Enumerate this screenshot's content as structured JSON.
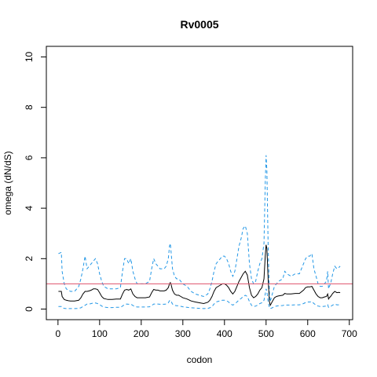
{
  "chart_data": {
    "type": "line",
    "title": "Rv0005",
    "xlabel": "codon",
    "ylabel": "omega (dN/dS)",
    "xlim": [
      -28,
      708
    ],
    "ylim": [
      -0.42,
      10.42
    ],
    "xticks": [
      0,
      100,
      200,
      300,
      400,
      500,
      600,
      700
    ],
    "yticks": [
      0,
      2,
      4,
      6,
      8,
      10
    ],
    "reference_line": {
      "y": 1,
      "color": "#DF536B"
    },
    "series": [
      {
        "role": "upper",
        "color": "#2297E6",
        "dash": "dashed",
        "x": [
          1,
          8,
          10,
          15,
          20,
          25,
          30,
          40,
          50,
          55,
          60,
          65,
          70,
          75,
          80,
          85,
          90,
          95,
          100,
          105,
          110,
          115,
          120,
          130,
          140,
          150,
          155,
          160,
          165,
          170,
          175,
          180,
          185,
          190,
          195,
          200,
          210,
          220,
          225,
          230,
          235,
          240,
          245,
          250,
          255,
          260,
          265,
          268,
          270,
          272,
          275,
          280,
          285,
          290,
          295,
          300,
          310,
          320,
          330,
          340,
          350,
          360,
          365,
          370,
          375,
          380,
          390,
          395,
          400,
          405,
          410,
          415,
          420,
          425,
          430,
          435,
          440,
          445,
          450,
          455,
          460,
          465,
          470,
          475,
          480,
          485,
          490,
          495,
          498,
          500,
          502,
          505,
          508,
          510,
          515,
          520,
          525,
          530,
          540,
          545,
          550,
          560,
          570,
          580,
          590,
          595,
          600,
          605,
          610,
          615,
          620,
          625,
          630,
          635,
          640,
          645,
          648,
          650,
          652,
          655,
          660,
          665,
          670,
          675,
          678
        ],
        "y": [
          2.2,
          2.25,
          1.5,
          1.0,
          0.8,
          0.75,
          0.7,
          0.7,
          0.9,
          1.2,
          1.6,
          2.1,
          1.6,
          1.7,
          1.8,
          1.9,
          2.0,
          1.8,
          1.4,
          1.1,
          0.9,
          0.85,
          0.8,
          0.8,
          0.8,
          0.85,
          1.5,
          2.0,
          2.0,
          1.8,
          2.0,
          1.5,
          1.2,
          1.0,
          1.0,
          1.0,
          1.0,
          1.1,
          1.6,
          2.0,
          1.8,
          1.7,
          1.6,
          1.6,
          1.6,
          1.7,
          2.0,
          2.5,
          2.6,
          2.2,
          1.6,
          1.3,
          1.2,
          1.2,
          1.1,
          1.0,
          0.9,
          0.7,
          0.6,
          0.55,
          0.5,
          0.6,
          0.8,
          1.1,
          1.5,
          1.8,
          2.0,
          2.1,
          2.1,
          2.0,
          1.8,
          1.5,
          1.3,
          1.5,
          2.0,
          2.5,
          2.8,
          3.2,
          3.3,
          3.0,
          1.8,
          1.2,
          1.0,
          1.1,
          1.5,
          1.8,
          2.0,
          2.6,
          5.0,
          6.1,
          5.5,
          2.5,
          0.6,
          0.3,
          0.6,
          0.9,
          1.0,
          1.1,
          1.2,
          1.5,
          1.4,
          1.3,
          1.4,
          1.4,
          1.8,
          2.0,
          2.1,
          2.1,
          2.2,
          1.6,
          1.3,
          1.0,
          0.9,
          0.9,
          1.0,
          1.1,
          1.5,
          0.8,
          0.9,
          1.0,
          1.4,
          1.7,
          1.6,
          1.65,
          1.7
        ]
      },
      {
        "role": "mean",
        "color": "#000000",
        "dash": "solid",
        "x": [
          1,
          8,
          10,
          15,
          20,
          25,
          30,
          40,
          50,
          55,
          60,
          65,
          70,
          75,
          80,
          85,
          90,
          95,
          100,
          105,
          110,
          115,
          120,
          130,
          140,
          150,
          155,
          160,
          165,
          170,
          175,
          180,
          185,
          190,
          195,
          200,
          210,
          220,
          225,
          230,
          235,
          240,
          245,
          250,
          255,
          260,
          265,
          268,
          270,
          272,
          275,
          280,
          285,
          290,
          295,
          300,
          310,
          320,
          330,
          340,
          350,
          360,
          365,
          370,
          375,
          380,
          390,
          395,
          400,
          405,
          410,
          415,
          420,
          425,
          430,
          435,
          440,
          445,
          450,
          455,
          460,
          465,
          470,
          475,
          480,
          485,
          490,
          495,
          498,
          500,
          502,
          505,
          508,
          510,
          515,
          520,
          525,
          530,
          540,
          545,
          550,
          560,
          570,
          580,
          590,
          595,
          600,
          605,
          610,
          615,
          620,
          625,
          630,
          635,
          640,
          645,
          648,
          650,
          652,
          655,
          660,
          665,
          670,
          675,
          678
        ],
        "y": [
          0.7,
          0.7,
          0.5,
          0.38,
          0.35,
          0.33,
          0.32,
          0.32,
          0.35,
          0.45,
          0.6,
          0.7,
          0.7,
          0.72,
          0.75,
          0.8,
          0.8,
          0.78,
          0.65,
          0.5,
          0.42,
          0.4,
          0.38,
          0.38,
          0.4,
          0.4,
          0.6,
          0.75,
          0.78,
          0.75,
          0.8,
          0.6,
          0.5,
          0.45,
          0.45,
          0.45,
          0.45,
          0.48,
          0.65,
          0.78,
          0.75,
          0.75,
          0.72,
          0.72,
          0.72,
          0.75,
          0.85,
          1.0,
          1.05,
          0.95,
          0.75,
          0.6,
          0.55,
          0.55,
          0.5,
          0.45,
          0.4,
          0.32,
          0.28,
          0.25,
          0.22,
          0.27,
          0.35,
          0.5,
          0.7,
          0.85,
          0.95,
          1.0,
          1.0,
          0.95,
          0.85,
          0.7,
          0.6,
          0.7,
          0.9,
          1.1,
          1.25,
          1.4,
          1.5,
          1.35,
          0.85,
          0.55,
          0.45,
          0.5,
          0.6,
          0.75,
          0.85,
          1.2,
          2.1,
          2.55,
          2.4,
          1.2,
          0.3,
          0.15,
          0.3,
          0.45,
          0.5,
          0.52,
          0.55,
          0.62,
          0.6,
          0.6,
          0.62,
          0.62,
          0.75,
          0.85,
          0.88,
          0.88,
          0.9,
          0.75,
          0.6,
          0.5,
          0.45,
          0.45,
          0.48,
          0.5,
          0.6,
          0.4,
          0.45,
          0.5,
          0.62,
          0.7,
          0.65,
          0.66,
          0.65
        ]
      },
      {
        "role": "lower",
        "color": "#2297E6",
        "dash": "dashed",
        "x": [
          1,
          8,
          10,
          15,
          20,
          25,
          30,
          40,
          50,
          55,
          60,
          65,
          70,
          75,
          80,
          85,
          90,
          95,
          100,
          105,
          110,
          115,
          120,
          130,
          140,
          150,
          155,
          160,
          165,
          170,
          175,
          180,
          185,
          190,
          195,
          200,
          210,
          220,
          225,
          230,
          235,
          240,
          245,
          250,
          255,
          260,
          265,
          268,
          270,
          272,
          275,
          280,
          285,
          290,
          295,
          300,
          310,
          320,
          330,
          340,
          350,
          360,
          365,
          370,
          375,
          380,
          390,
          395,
          400,
          405,
          410,
          415,
          420,
          425,
          430,
          435,
          440,
          445,
          450,
          455,
          460,
          465,
          470,
          475,
          480,
          485,
          490,
          495,
          498,
          500,
          502,
          505,
          508,
          510,
          515,
          520,
          525,
          530,
          540,
          545,
          550,
          560,
          570,
          580,
          590,
          595,
          600,
          605,
          610,
          615,
          620,
          625,
          630,
          635,
          640,
          645,
          648,
          650,
          652,
          655,
          660,
          665,
          670,
          675,
          678
        ],
        "y": [
          0.1,
          0.1,
          0.06,
          0.03,
          0.02,
          0.02,
          0.02,
          0.02,
          0.03,
          0.05,
          0.1,
          0.15,
          0.2,
          0.2,
          0.22,
          0.24,
          0.24,
          0.22,
          0.18,
          0.12,
          0.08,
          0.07,
          0.06,
          0.06,
          0.07,
          0.07,
          0.12,
          0.18,
          0.2,
          0.19,
          0.2,
          0.14,
          0.1,
          0.08,
          0.08,
          0.08,
          0.08,
          0.09,
          0.14,
          0.2,
          0.2,
          0.2,
          0.19,
          0.19,
          0.19,
          0.2,
          0.25,
          0.33,
          0.35,
          0.3,
          0.2,
          0.15,
          0.13,
          0.13,
          0.11,
          0.09,
          0.07,
          0.05,
          0.04,
          0.03,
          0.02,
          0.03,
          0.05,
          0.1,
          0.2,
          0.28,
          0.33,
          0.35,
          0.35,
          0.33,
          0.28,
          0.2,
          0.16,
          0.2,
          0.28,
          0.36,
          0.42,
          0.5,
          0.55,
          0.5,
          0.3,
          0.15,
          0.1,
          0.12,
          0.16,
          0.22,
          0.25,
          0.35,
          0.6,
          0.8,
          0.7,
          0.3,
          0.05,
          0.02,
          0.05,
          0.1,
          0.12,
          0.13,
          0.14,
          0.17,
          0.16,
          0.16,
          0.17,
          0.17,
          0.22,
          0.26,
          0.28,
          0.28,
          0.3,
          0.22,
          0.16,
          0.12,
          0.1,
          0.1,
          0.11,
          0.12,
          0.17,
          0.07,
          0.09,
          0.1,
          0.16,
          0.2,
          0.17,
          0.17,
          0.16
        ]
      }
    ]
  }
}
